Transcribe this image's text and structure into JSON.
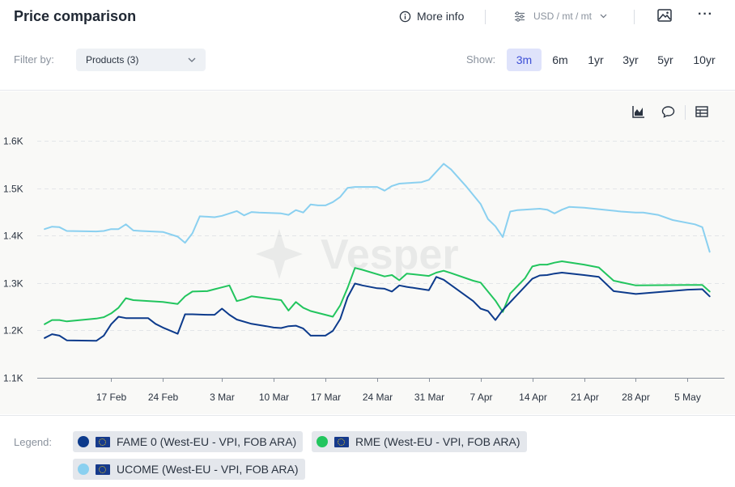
{
  "header": {
    "title": "Price comparison",
    "more_info_label": "More info",
    "units_label": "USD / mt / mt"
  },
  "filter": {
    "label": "Filter by:",
    "selected": "Products (3)"
  },
  "range": {
    "label": "Show:",
    "options": [
      "3m",
      "6m",
      "1yr",
      "3yr",
      "5yr",
      "10yr"
    ],
    "active": "3m"
  },
  "icons": {
    "more_info": "info-icon",
    "units": "sliders-icon",
    "image": "image-icon",
    "menu": "more-icon",
    "chart_type": "chart-icon",
    "comment": "comment-icon",
    "table": "table-icon"
  },
  "watermark": "Vesper",
  "legend": {
    "label": "Legend:",
    "items": [
      {
        "label": "FAME 0 (West-EU - VPI, FOB ARA)",
        "color": "#0d3b8c"
      },
      {
        "label": "RME (West-EU - VPI, FOB ARA)",
        "color": "#22c55e"
      },
      {
        "label": "UCOME (West-EU - VPI, FOB ARA)",
        "color": "#8ad0f0"
      }
    ]
  },
  "chart_data": {
    "type": "line",
    "ylim": [
      1100,
      1650
    ],
    "yticks": [
      1100,
      1200,
      1300,
      1400,
      1500,
      1600
    ],
    "ytick_labels": [
      "1.1K",
      "1.2K",
      "1.3K",
      "1.4K",
      "1.5K",
      "1.6K"
    ],
    "x_start": "2024-02-07",
    "x_end": "2024-05-10",
    "xtick_dates": [
      "2024-02-17",
      "2024-02-24",
      "2024-03-03",
      "2024-03-10",
      "2024-03-17",
      "2024-03-24",
      "2024-03-31",
      "2024-04-07",
      "2024-04-14",
      "2024-04-21",
      "2024-04-28",
      "2024-05-05"
    ],
    "xtick_labels": [
      "17 Feb",
      "24 Feb",
      "3 Mar",
      "10 Mar",
      "17 Mar",
      "24 Mar",
      "31 Mar",
      "7 Apr",
      "14 Apr",
      "21 Apr",
      "28 Apr",
      "5 May"
    ],
    "grid": true,
    "legend_position": "bottom",
    "series": [
      {
        "name": "UCOME (West-EU - VPI, FOB ARA)",
        "color": "#8ad0f0",
        "points": [
          [
            "2024-02-08",
            1414
          ],
          [
            "2024-02-09",
            1419
          ],
          [
            "2024-02-10",
            1418
          ],
          [
            "2024-02-11",
            1410
          ],
          [
            "2024-02-15",
            1409
          ],
          [
            "2024-02-16",
            1410
          ],
          [
            "2024-02-17",
            1414
          ],
          [
            "2024-02-18",
            1414
          ],
          [
            "2024-02-19",
            1424
          ],
          [
            "2024-02-20",
            1411
          ],
          [
            "2024-02-21",
            1410
          ],
          [
            "2024-02-24",
            1408
          ],
          [
            "2024-02-26",
            1398
          ],
          [
            "2024-02-27",
            1385
          ],
          [
            "2024-02-28",
            1405
          ],
          [
            "2024-02-29",
            1441
          ],
          [
            "2024-03-01",
            1440
          ],
          [
            "2024-03-02",
            1439
          ],
          [
            "2024-03-03",
            1442
          ],
          [
            "2024-03-05",
            1452
          ],
          [
            "2024-03-06",
            1443
          ],
          [
            "2024-03-07",
            1450
          ],
          [
            "2024-03-08",
            1449
          ],
          [
            "2024-03-11",
            1447
          ],
          [
            "2024-03-12",
            1444
          ],
          [
            "2024-03-13",
            1454
          ],
          [
            "2024-03-14",
            1449
          ],
          [
            "2024-03-15",
            1466
          ],
          [
            "2024-03-16",
            1464
          ],
          [
            "2024-03-17",
            1464
          ],
          [
            "2024-03-18",
            1471
          ],
          [
            "2024-03-19",
            1482
          ],
          [
            "2024-03-20",
            1501
          ],
          [
            "2024-03-21",
            1503
          ],
          [
            "2024-03-22",
            1503
          ],
          [
            "2024-03-23",
            1503
          ],
          [
            "2024-03-24",
            1503
          ],
          [
            "2024-03-25",
            1495
          ],
          [
            "2024-03-26",
            1505
          ],
          [
            "2024-03-27",
            1510
          ],
          [
            "2024-03-28",
            1511
          ],
          [
            "2024-03-30",
            1513
          ],
          [
            "2024-03-31",
            1518
          ],
          [
            "2024-04-01",
            1535
          ],
          [
            "2024-04-02",
            1552
          ],
          [
            "2024-04-03",
            1540
          ],
          [
            "2024-04-05",
            1505
          ],
          [
            "2024-04-07",
            1467
          ],
          [
            "2024-04-08",
            1435
          ],
          [
            "2024-04-09",
            1420
          ],
          [
            "2024-04-10",
            1397
          ],
          [
            "2024-04-11",
            1451
          ],
          [
            "2024-04-12",
            1454
          ],
          [
            "2024-04-15",
            1457
          ],
          [
            "2024-04-16",
            1455
          ],
          [
            "2024-04-17",
            1447
          ],
          [
            "2024-04-18",
            1455
          ],
          [
            "2024-04-19",
            1461
          ],
          [
            "2024-04-21",
            1459
          ],
          [
            "2024-04-23",
            1456
          ],
          [
            "2024-04-26",
            1451
          ],
          [
            "2024-04-28",
            1449
          ],
          [
            "2024-04-29",
            1449
          ],
          [
            "2024-05-01",
            1444
          ],
          [
            "2024-05-03",
            1433
          ],
          [
            "2024-05-06",
            1424
          ],
          [
            "2024-05-07",
            1418
          ],
          [
            "2024-05-08",
            1366
          ]
        ]
      },
      {
        "name": "RME (West-EU - VPI, FOB ARA)",
        "color": "#22c55e",
        "points": [
          [
            "2024-02-08",
            1213
          ],
          [
            "2024-02-09",
            1222
          ],
          [
            "2024-02-10",
            1222
          ],
          [
            "2024-02-11",
            1219
          ],
          [
            "2024-02-15",
            1225
          ],
          [
            "2024-02-16",
            1228
          ],
          [
            "2024-02-17",
            1236
          ],
          [
            "2024-02-18",
            1248
          ],
          [
            "2024-02-19",
            1268
          ],
          [
            "2024-02-20",
            1264
          ],
          [
            "2024-02-24",
            1260
          ],
          [
            "2024-02-26",
            1256
          ],
          [
            "2024-02-27",
            1272
          ],
          [
            "2024-02-28",
            1282
          ],
          [
            "2024-03-01",
            1283
          ],
          [
            "2024-03-02",
            1287
          ],
          [
            "2024-03-03",
            1291
          ],
          [
            "2024-03-04",
            1295
          ],
          [
            "2024-03-05",
            1262
          ],
          [
            "2024-03-06",
            1266
          ],
          [
            "2024-03-07",
            1272
          ],
          [
            "2024-03-11",
            1264
          ],
          [
            "2024-03-12",
            1242
          ],
          [
            "2024-03-13",
            1260
          ],
          [
            "2024-03-14",
            1248
          ],
          [
            "2024-03-15",
            1241
          ],
          [
            "2024-03-17",
            1233
          ],
          [
            "2024-03-18",
            1229
          ],
          [
            "2024-03-19",
            1253
          ],
          [
            "2024-03-20",
            1290
          ],
          [
            "2024-03-21",
            1332
          ],
          [
            "2024-03-22",
            1328
          ],
          [
            "2024-03-25",
            1314
          ],
          [
            "2024-03-26",
            1317
          ],
          [
            "2024-03-27",
            1306
          ],
          [
            "2024-03-28",
            1320
          ],
          [
            "2024-03-31",
            1315
          ],
          [
            "2024-04-01",
            1322
          ],
          [
            "2024-04-02",
            1326
          ],
          [
            "2024-04-03",
            1321
          ],
          [
            "2024-04-06",
            1305
          ],
          [
            "2024-04-07",
            1301
          ],
          [
            "2024-04-09",
            1263
          ],
          [
            "2024-04-10",
            1239
          ],
          [
            "2024-04-11",
            1278
          ],
          [
            "2024-04-13",
            1310
          ],
          [
            "2024-04-14",
            1335
          ],
          [
            "2024-04-15",
            1339
          ],
          [
            "2024-04-16",
            1339
          ],
          [
            "2024-04-17",
            1343
          ],
          [
            "2024-04-18",
            1346
          ],
          [
            "2024-04-21",
            1339
          ],
          [
            "2024-04-23",
            1333
          ],
          [
            "2024-04-25",
            1305
          ],
          [
            "2024-04-28",
            1295
          ],
          [
            "2024-05-05",
            1296
          ],
          [
            "2024-05-07",
            1296
          ],
          [
            "2024-05-08",
            1282
          ]
        ]
      },
      {
        "name": "FAME 0 (West-EU - VPI, FOB ARA)",
        "color": "#0d3b8c",
        "points": [
          [
            "2024-02-08",
            1184
          ],
          [
            "2024-02-09",
            1192
          ],
          [
            "2024-02-10",
            1189
          ],
          [
            "2024-02-11",
            1179
          ],
          [
            "2024-02-15",
            1178
          ],
          [
            "2024-02-16",
            1189
          ],
          [
            "2024-02-17",
            1213
          ],
          [
            "2024-02-18",
            1229
          ],
          [
            "2024-02-19",
            1226
          ],
          [
            "2024-02-20",
            1226
          ],
          [
            "2024-02-22",
            1226
          ],
          [
            "2024-02-23",
            1214
          ],
          [
            "2024-02-24",
            1206
          ],
          [
            "2024-02-26",
            1193
          ],
          [
            "2024-02-27",
            1234
          ],
          [
            "2024-02-28",
            1234
          ],
          [
            "2024-03-01",
            1233
          ],
          [
            "2024-03-02",
            1233
          ],
          [
            "2024-03-03",
            1246
          ],
          [
            "2024-03-04",
            1233
          ],
          [
            "2024-03-05",
            1223
          ],
          [
            "2024-03-07",
            1214
          ],
          [
            "2024-03-09",
            1209
          ],
          [
            "2024-03-10",
            1206
          ],
          [
            "2024-03-11",
            1205
          ],
          [
            "2024-03-12",
            1209
          ],
          [
            "2024-03-13",
            1210
          ],
          [
            "2024-03-14",
            1204
          ],
          [
            "2024-03-15",
            1189
          ],
          [
            "2024-03-17",
            1189
          ],
          [
            "2024-03-18",
            1199
          ],
          [
            "2024-03-19",
            1224
          ],
          [
            "2024-03-20",
            1270
          ],
          [
            "2024-03-21",
            1299
          ],
          [
            "2024-03-22",
            1295
          ],
          [
            "2024-03-24",
            1289
          ],
          [
            "2024-03-25",
            1288
          ],
          [
            "2024-03-26",
            1282
          ],
          [
            "2024-03-27",
            1295
          ],
          [
            "2024-03-28",
            1292
          ],
          [
            "2024-03-31",
            1285
          ],
          [
            "2024-04-01",
            1313
          ],
          [
            "2024-04-02",
            1307
          ],
          [
            "2024-04-06",
            1262
          ],
          [
            "2024-04-07",
            1246
          ],
          [
            "2024-04-08",
            1241
          ],
          [
            "2024-04-09",
            1222
          ],
          [
            "2024-04-10",
            1243
          ],
          [
            "2024-04-14",
            1309
          ],
          [
            "2024-04-15",
            1316
          ],
          [
            "2024-04-16",
            1317
          ],
          [
            "2024-04-17",
            1320
          ],
          [
            "2024-04-18",
            1322
          ],
          [
            "2024-04-21",
            1317
          ],
          [
            "2024-04-23",
            1313
          ],
          [
            "2024-04-25",
            1283
          ],
          [
            "2024-04-28",
            1277
          ],
          [
            "2024-05-05",
            1286
          ],
          [
            "2024-05-07",
            1287
          ],
          [
            "2024-05-08",
            1272
          ]
        ]
      }
    ]
  }
}
